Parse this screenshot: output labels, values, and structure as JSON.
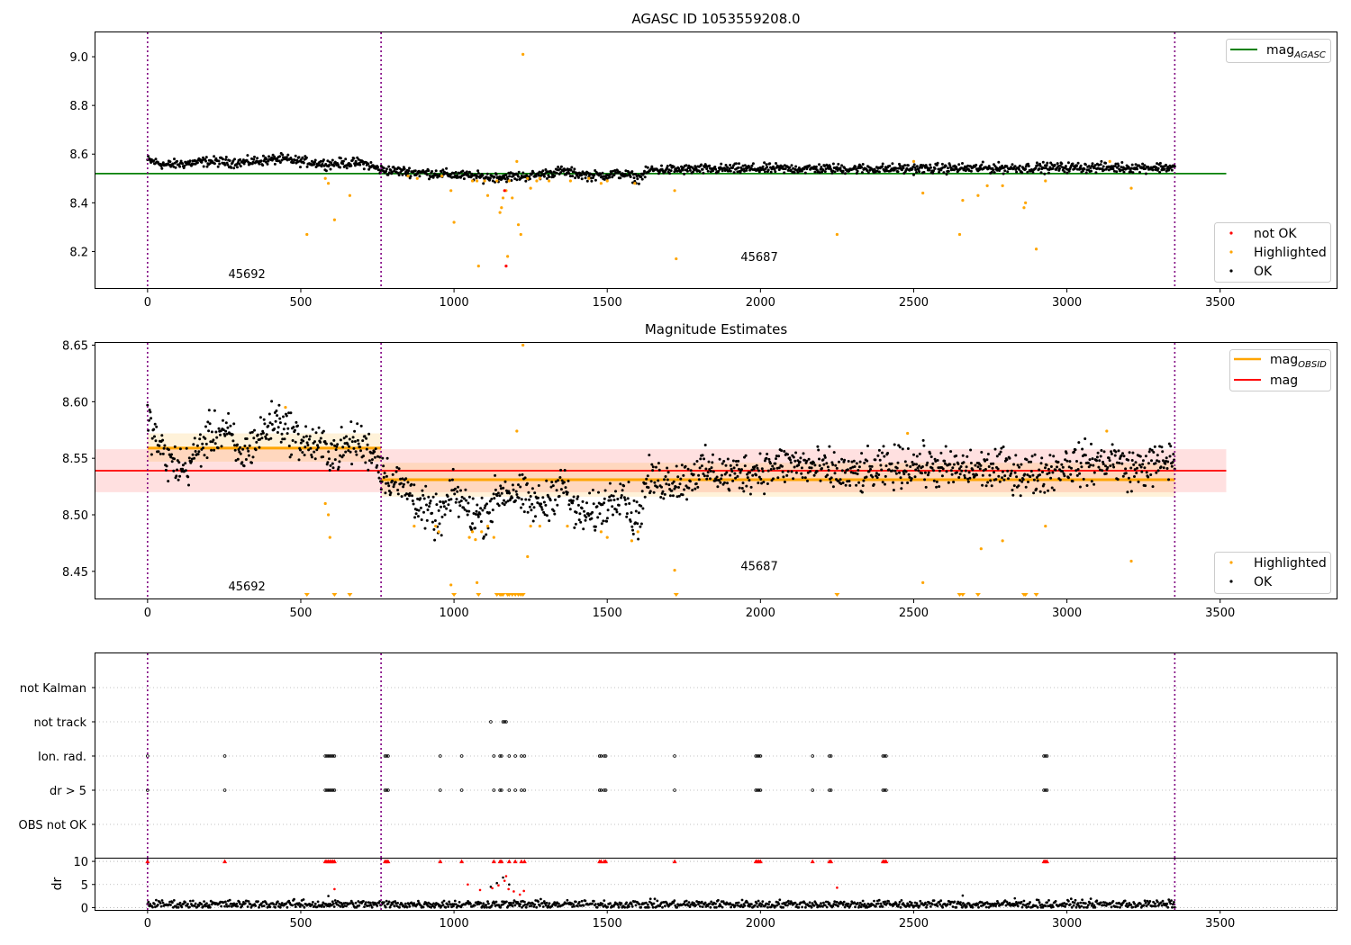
{
  "figure": {
    "title": "AGASC ID 1053559208.0",
    "panel2_title": "Magnitude Estimates"
  },
  "colors": {
    "ok": "#000000",
    "highlighted": "#ffa500",
    "not_ok": "#ff0000",
    "mag_agasc": "#008000",
    "mag_obsid": "#ffa500",
    "mag": "#ff0000",
    "obsid_boundary": "#800080",
    "grid": "#b0b0b0"
  },
  "chart_data": [
    {
      "type": "scatter",
      "title": "AGASC ID 1053559208.0",
      "xlim": [
        -170,
        3880
      ],
      "ylim": [
        8.05,
        9.1
      ],
      "xticks": [
        0,
        500,
        1000,
        1500,
        2000,
        2500,
        3000,
        3500
      ],
      "yticks": [
        8.2,
        8.4,
        8.6,
        8.8,
        9.0
      ],
      "ytick_labels": [
        "8.2",
        "8.4",
        "8.6",
        "8.8",
        "9.0"
      ],
      "obsid_boundaries": [
        0,
        762,
        3352
      ],
      "obsid_labels": [
        {
          "text": "45692",
          "x": 385,
          "y": 8.09
        },
        {
          "text": "45687",
          "x": 2057,
          "y": 8.16
        }
      ],
      "reference_lines": [
        {
          "name": "mag_AGASC",
          "y": 8.52,
          "x": [
            -170,
            3520
          ],
          "color": "#008000"
        }
      ],
      "legends": [
        {
          "placement": "upper-right",
          "entries": [
            {
              "label": "mag",
              "subscript": "AGASC",
              "kind": "line",
              "color": "#008000"
            }
          ]
        },
        {
          "placement": "lower-right",
          "entries": [
            {
              "label": "not OK",
              "kind": "dot",
              "color": "#ff0000"
            },
            {
              "label": "Highlighted",
              "kind": "dot",
              "color": "#ffa500"
            },
            {
              "label": "OK",
              "kind": "dot",
              "color": "#000000"
            }
          ]
        }
      ],
      "ok_trend": [
        [
          0,
          8.575
        ],
        [
          60,
          8.555
        ],
        [
          200,
          8.57
        ],
        [
          300,
          8.565
        ],
        [
          430,
          8.58
        ],
        [
          580,
          8.56
        ],
        [
          700,
          8.565
        ],
        [
          762,
          8.535
        ],
        [
          1000,
          8.515
        ],
        [
          1100,
          8.505
        ],
        [
          1250,
          8.51
        ],
        [
          1350,
          8.53
        ],
        [
          1450,
          8.51
        ],
        [
          1550,
          8.52
        ],
        [
          1600,
          8.5
        ],
        [
          1640,
          8.535
        ],
        [
          2000,
          8.54
        ],
        [
          2500,
          8.54
        ],
        [
          3000,
          8.545
        ],
        [
          3352,
          8.545
        ]
      ],
      "ok_x_range": [
        0,
        3352
      ],
      "ok_spread": 0.01,
      "highlighted_points": [
        [
          520,
          8.27
        ],
        [
          580,
          8.5
        ],
        [
          590,
          8.48
        ],
        [
          610,
          8.33
        ],
        [
          660,
          8.43
        ],
        [
          850,
          8.51
        ],
        [
          880,
          8.5
        ],
        [
          960,
          8.51
        ],
        [
          990,
          8.45
        ],
        [
          1000,
          8.32
        ],
        [
          1060,
          8.49
        ],
        [
          1075,
          8.49
        ],
        [
          1080,
          8.14
        ],
        [
          1100,
          8.49
        ],
        [
          1110,
          8.43
        ],
        [
          1140,
          8.49
        ],
        [
          1150,
          8.36
        ],
        [
          1155,
          8.38
        ],
        [
          1160,
          8.42
        ],
        [
          1170,
          8.45
        ],
        [
          1175,
          8.18
        ],
        [
          1180,
          8.49
        ],
        [
          1190,
          8.42
        ],
        [
          1205,
          8.57
        ],
        [
          1210,
          8.31
        ],
        [
          1218,
          8.27
        ],
        [
          1225,
          9.01
        ],
        [
          1240,
          8.5
        ],
        [
          1250,
          8.46
        ],
        [
          1270,
          8.49
        ],
        [
          1280,
          8.5
        ],
        [
          1310,
          8.49
        ],
        [
          1380,
          8.49
        ],
        [
          1440,
          8.5
        ],
        [
          1480,
          8.48
        ],
        [
          1500,
          8.49
        ],
        [
          1590,
          8.48
        ],
        [
          1720,
          8.45
        ],
        [
          1725,
          8.17
        ],
        [
          2250,
          8.27
        ],
        [
          2500,
          8.57
        ],
        [
          2530,
          8.44
        ],
        [
          2650,
          8.27
        ],
        [
          2660,
          8.41
        ],
        [
          2710,
          8.43
        ],
        [
          2740,
          8.47
        ],
        [
          2790,
          8.47
        ],
        [
          2860,
          8.38
        ],
        [
          2865,
          8.4
        ],
        [
          2900,
          8.21
        ],
        [
          2930,
          8.49
        ],
        [
          3140,
          8.57
        ],
        [
          3210,
          8.46
        ]
      ],
      "not_ok_points": [
        [
          1165,
          8.45
        ],
        [
          1170,
          8.14
        ]
      ]
    },
    {
      "type": "scatter",
      "title": "Magnitude Estimates",
      "xlim": [
        -170,
        3880
      ],
      "ylim": [
        8.426,
        8.652
      ],
      "xticks": [
        0,
        500,
        1000,
        1500,
        2000,
        2500,
        3000,
        3500
      ],
      "yticks": [
        8.45,
        8.5,
        8.55,
        8.6,
        8.65
      ],
      "ytick_labels": [
        "8.45",
        "8.50",
        "8.55",
        "8.60",
        "8.65"
      ],
      "obsid_boundaries": [
        0,
        762,
        3352
      ],
      "obsid_labels": [
        {
          "text": "45692",
          "x": 385,
          "y": 8.433
        },
        {
          "text": "45687",
          "x": 2057,
          "y": 8.451
        }
      ],
      "bands": [
        {
          "name": "mag",
          "y0": 8.52,
          "y1": 8.558,
          "x": [
            -170,
            3520
          ],
          "color": "#ff0000",
          "opacity": 0.12
        },
        {
          "name": "mag_OBSID 45692",
          "y0": 8.547,
          "y1": 8.572,
          "x": [
            0,
            762
          ],
          "color": "#ffa500",
          "opacity": 0.15
        },
        {
          "name": "mag_OBSID 45687",
          "y0": 8.516,
          "y1": 8.546,
          "x": [
            762,
            3352
          ],
          "color": "#ffa500",
          "opacity": 0.15
        }
      ],
      "reference_lines": [
        {
          "name": "mag_OBSID 45692",
          "y": 8.559,
          "x": [
            0,
            762
          ],
          "color": "#ffa500",
          "width": 3
        },
        {
          "name": "mag_OBSID 45687",
          "y": 8.531,
          "x": [
            762,
            3352
          ],
          "color": "#ffa500",
          "width": 3
        },
        {
          "name": "mag",
          "y": 8.539,
          "x": [
            -170,
            3520
          ],
          "color": "#ff0000",
          "width": 1.8
        }
      ],
      "legends": [
        {
          "placement": "upper-right",
          "entries": [
            {
              "label": "mag",
              "subscript": "OBSID",
              "kind": "line",
              "color": "#ffa500"
            },
            {
              "label": "mag",
              "kind": "line",
              "color": "#ff0000"
            }
          ]
        },
        {
          "placement": "lower-right",
          "entries": [
            {
              "label": "Highlighted",
              "kind": "dot",
              "color": "#ffa500"
            },
            {
              "label": "OK",
              "kind": "dot",
              "color": "#000000"
            }
          ]
        }
      ],
      "ok_trend": [
        [
          0,
          8.585
        ],
        [
          30,
          8.565
        ],
        [
          60,
          8.55
        ],
        [
          120,
          8.54
        ],
        [
          160,
          8.555
        ],
        [
          200,
          8.57
        ],
        [
          260,
          8.575
        ],
        [
          300,
          8.55
        ],
        [
          350,
          8.565
        ],
        [
          420,
          8.585
        ],
        [
          440,
          8.58
        ],
        [
          500,
          8.565
        ],
        [
          560,
          8.56
        ],
        [
          620,
          8.555
        ],
        [
          680,
          8.565
        ],
        [
          740,
          8.555
        ],
        [
          762,
          8.54
        ],
        [
          800,
          8.53
        ],
        [
          860,
          8.52
        ],
        [
          900,
          8.505
        ],
        [
          950,
          8.495
        ],
        [
          1000,
          8.52
        ],
        [
          1060,
          8.5
        ],
        [
          1100,
          8.5
        ],
        [
          1150,
          8.52
        ],
        [
          1200,
          8.52
        ],
        [
          1250,
          8.51
        ],
        [
          1300,
          8.51
        ],
        [
          1350,
          8.53
        ],
        [
          1400,
          8.5
        ],
        [
          1450,
          8.5
        ],
        [
          1500,
          8.51
        ],
        [
          1550,
          8.525
        ],
        [
          1580,
          8.5
        ],
        [
          1600,
          8.495
        ],
        [
          1630,
          8.53
        ],
        [
          1700,
          8.53
        ],
        [
          1750,
          8.53
        ],
        [
          1800,
          8.54
        ],
        [
          1900,
          8.535
        ],
        [
          2000,
          8.54
        ],
        [
          2100,
          8.545
        ],
        [
          2200,
          8.54
        ],
        [
          2300,
          8.535
        ],
        [
          2400,
          8.54
        ],
        [
          2500,
          8.545
        ],
        [
          2600,
          8.54
        ],
        [
          2700,
          8.54
        ],
        [
          2800,
          8.54
        ],
        [
          2900,
          8.535
        ],
        [
          3000,
          8.545
        ],
        [
          3100,
          8.545
        ],
        [
          3150,
          8.55
        ],
        [
          3200,
          8.54
        ],
        [
          3300,
          8.545
        ],
        [
          3352,
          8.55
        ]
      ],
      "ok_x_range": [
        0,
        3352
      ],
      "ok_spread": 0.009,
      "highlighted_points": [
        [
          450,
          8.595
        ],
        [
          580,
          8.51
        ],
        [
          590,
          8.5
        ],
        [
          595,
          8.48
        ],
        [
          870,
          8.49
        ],
        [
          940,
          8.49
        ],
        [
          950,
          8.485
        ],
        [
          990,
          8.438
        ],
        [
          1050,
          8.48
        ],
        [
          1060,
          8.485
        ],
        [
          1070,
          8.478
        ],
        [
          1075,
          8.44
        ],
        [
          1090,
          8.485
        ],
        [
          1110,
          8.49
        ],
        [
          1130,
          8.48
        ],
        [
          1205,
          8.574
        ],
        [
          1225,
          8.65
        ],
        [
          1240,
          8.463
        ],
        [
          1250,
          8.49
        ],
        [
          1280,
          8.49
        ],
        [
          1370,
          8.49
        ],
        [
          1480,
          8.485
        ],
        [
          1500,
          8.48
        ],
        [
          1580,
          8.477
        ],
        [
          1600,
          8.485
        ],
        [
          1720,
          8.451
        ],
        [
          2480,
          8.572
        ],
        [
          2530,
          8.44
        ],
        [
          2720,
          8.47
        ],
        [
          2790,
          8.477
        ],
        [
          2930,
          8.49
        ],
        [
          3130,
          8.574
        ],
        [
          3210,
          8.459
        ]
      ],
      "clipped_markers": [
        520,
        610,
        660,
        1000,
        1080,
        1140,
        1150,
        1155,
        1160,
        1175,
        1180,
        1190,
        1200,
        1210,
        1218,
        1225,
        1725,
        2250,
        2650,
        2660,
        2710,
        2860,
        2865,
        2900
      ]
    },
    {
      "type": "scatter",
      "xlim": [
        -170,
        3880
      ],
      "xticks": [
        0,
        500,
        1000,
        1500,
        2000,
        2500,
        3000,
        3500
      ],
      "obsid_boundaries": [
        0,
        762,
        3352
      ],
      "flag_rows": [
        "not Kalman",
        "not track",
        "Ion. rad.",
        "dr > 5",
        "OBS not OK"
      ],
      "flag_points": {
        "not track": [
          1120,
          1160,
          1165,
          1170
        ],
        "Ion. rad.": [
          0,
          252,
          580,
          585,
          590,
          595,
          600,
          605,
          610,
          775,
          780,
          785,
          955,
          1025,
          1130,
          1150,
          1155,
          1180,
          1200,
          1220,
          1230,
          1475,
          1480,
          1490,
          1495,
          1720,
          1985,
          1990,
          1995,
          2000,
          2170,
          2225,
          2230,
          2400,
          2405,
          2410,
          2925,
          2930,
          2935
        ],
        "dr > 5": [
          0,
          252,
          580,
          585,
          590,
          595,
          600,
          605,
          610,
          775,
          780,
          785,
          955,
          1025,
          1130,
          1150,
          1155,
          1180,
          1200,
          1220,
          1230,
          1475,
          1480,
          1490,
          1495,
          1720,
          1985,
          1990,
          1995,
          2000,
          2170,
          2225,
          2230,
          2400,
          2405,
          2410,
          2925,
          2930,
          2935
        ]
      }
    },
    {
      "type": "scatter",
      "ylabel": "dr",
      "xlim": [
        -170,
        3880
      ],
      "ylim": [
        -0.5,
        10.6
      ],
      "xticks": [
        0,
        500,
        1000,
        1500,
        2000,
        2500,
        3000,
        3500
      ],
      "yticks": [
        0,
        5,
        10
      ],
      "obsid_boundaries": [
        0,
        762,
        3352
      ],
      "ok_baseline": 0.7,
      "ok_spread": 0.45,
      "ok_x_range": [
        0,
        3352
      ],
      "ok_extra_points": [
        [
          590,
          2.5
        ],
        [
          1120,
          4.5
        ],
        [
          1140,
          5.3
        ],
        [
          1160,
          6.5
        ],
        [
          1180,
          5.0
        ],
        [
          2250,
          1.2
        ],
        [
          2660,
          2.6
        ],
        [
          2830,
          2.0
        ]
      ],
      "red_points": [
        [
          1045,
          5.0
        ],
        [
          1085,
          3.8
        ],
        [
          1125,
          4.2
        ],
        [
          1145,
          4.8
        ],
        [
          1165,
          5.8
        ],
        [
          1170,
          6.8
        ],
        [
          1178,
          4.0
        ],
        [
          1195,
          3.5
        ],
        [
          1215,
          2.8
        ],
        [
          1228,
          3.6
        ],
        [
          610,
          4.0
        ],
        [
          2250,
          4.3
        ]
      ],
      "red_at_limit": [
        0,
        252,
        580,
        585,
        590,
        595,
        600,
        605,
        610,
        775,
        780,
        785,
        955,
        1025,
        1130,
        1150,
        1155,
        1180,
        1200,
        1220,
        1230,
        1475,
        1480,
        1490,
        1495,
        1720,
        1985,
        1990,
        1995,
        2000,
        2170,
        2225,
        2230,
        2400,
        2405,
        2410,
        2925,
        2930,
        2935
      ]
    }
  ]
}
